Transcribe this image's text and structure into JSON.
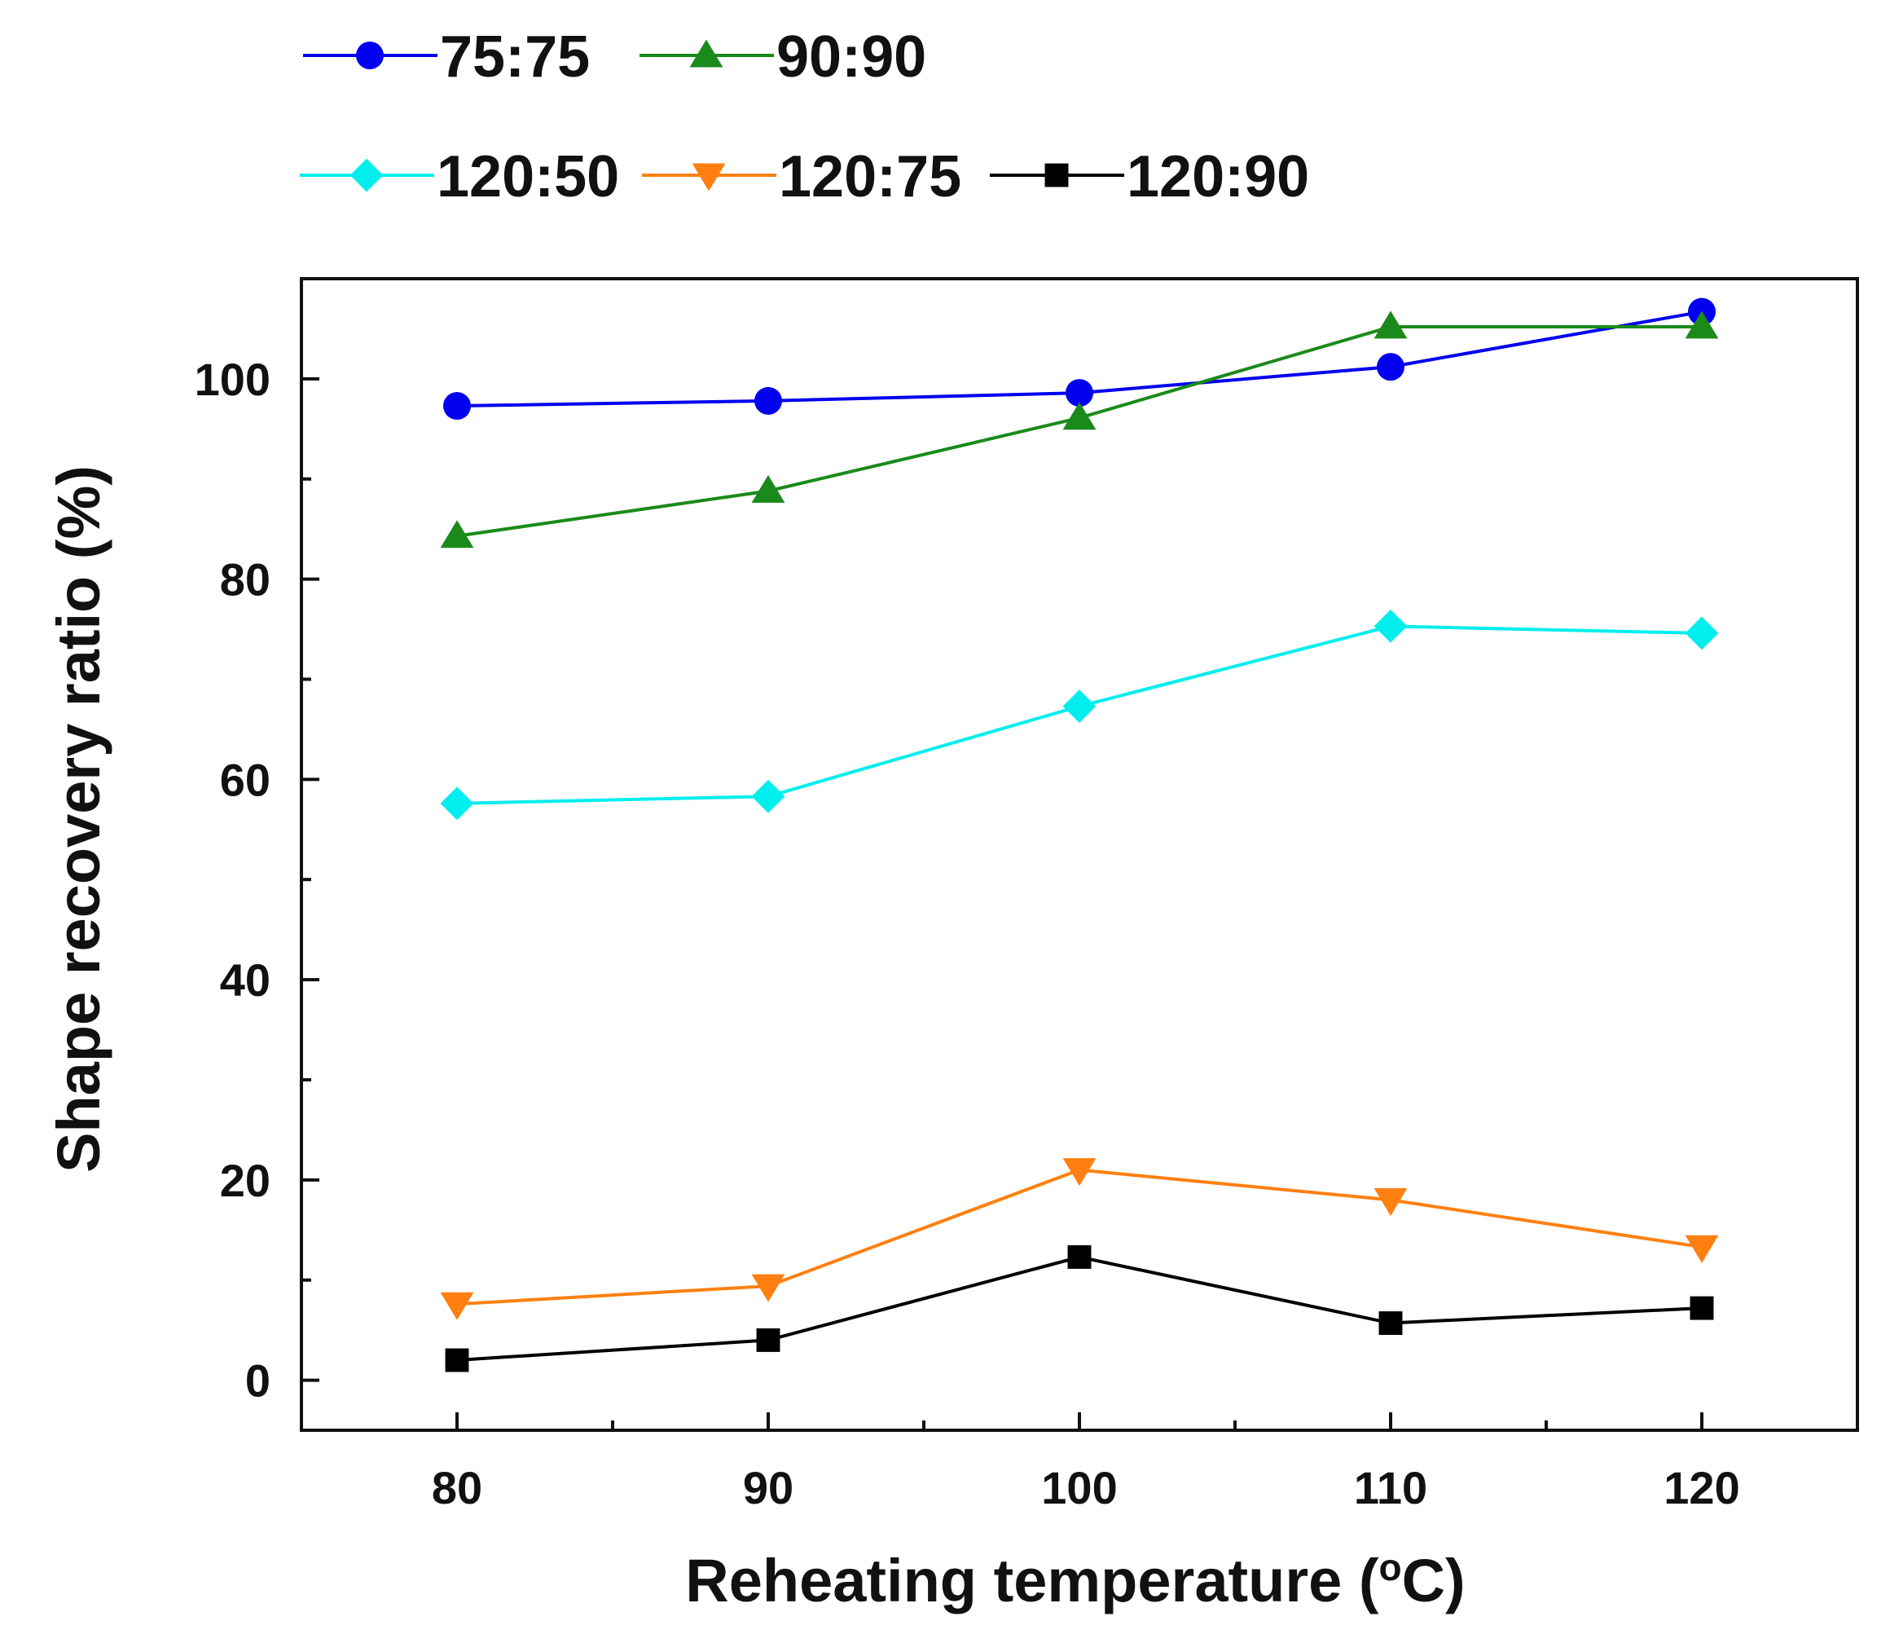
{
  "chart_data": {
    "type": "line",
    "title": "",
    "xlabel": "Reheating temperature (°C)",
    "xlabel_main": "Reheating temperature (",
    "xlabel_degree": "o",
    "xlabel_unit": "C)",
    "ylabel": "Shape recovery ratio (%)",
    "x": [
      80,
      90,
      100,
      110,
      120
    ],
    "xlim": [
      75,
      125
    ],
    "ylim": [
      -5,
      110
    ],
    "xticks": [
      80,
      90,
      100,
      110,
      120
    ],
    "yticks": [
      0,
      20,
      40,
      60,
      80,
      100
    ],
    "legend_position": "top",
    "series": [
      {
        "name": "75:75",
        "color": "#0000ee",
        "marker": "circle",
        "values": [
          97.3,
          97.8,
          98.6,
          101.2,
          106.7
        ]
      },
      {
        "name": "90:90",
        "color": "#1a8a1a",
        "marker": "triangle-up",
        "values": [
          84.3,
          88.8,
          96.1,
          105.2,
          105.2
        ]
      },
      {
        "name": "120:50",
        "color": "#00eeee",
        "marker": "diamond",
        "values": [
          57.6,
          58.3,
          67.3,
          75.3,
          74.6
        ]
      },
      {
        "name": "120:75",
        "color": "#ff8010",
        "marker": "triangle-down",
        "values": [
          7.6,
          9.4,
          21.0,
          18.0,
          13.3
        ]
      },
      {
        "name": "120:90",
        "color": "#000000",
        "marker": "square",
        "values": [
          2.0,
          4.0,
          12.3,
          5.7,
          7.2
        ]
      }
    ]
  }
}
